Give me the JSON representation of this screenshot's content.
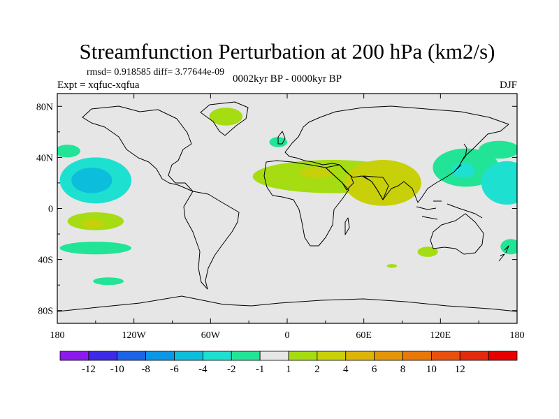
{
  "chart_data": {
    "type": "heatmap",
    "title": "Streamfunction Perturbation at 200 hPa (km2/s)",
    "stats_text": "rmsd= 0.918585 diff= 3.77644e-09",
    "left_label": "Expt = xqfuc-xqfua",
    "center_label": "0002kyr BP - 0000kyr BP",
    "right_label": "DJF",
    "x_axis": {
      "range": [
        -180,
        180
      ],
      "tick_values": [
        -180,
        -120,
        -60,
        0,
        60,
        120,
        180
      ],
      "tick_labels": [
        "180",
        "120W",
        "60W",
        "0",
        "60E",
        "120E",
        "180"
      ]
    },
    "y_axis": {
      "range": [
        -90,
        90
      ],
      "tick_values": [
        80,
        40,
        0,
        -40,
        -80
      ],
      "tick_labels": [
        "80N",
        "40N",
        "0",
        "40S",
        "80S"
      ]
    },
    "colorbar": {
      "colors": [
        "#8c1aec",
        "#3c2ae6",
        "#1c64e6",
        "#0c96e6",
        "#0cbedc",
        "#1ee0d0",
        "#22e496",
        "#e6e6e6",
        "#a6dc12",
        "#c8d00a",
        "#dcb40a",
        "#e4960a",
        "#e8780a",
        "#e8500c",
        "#e42a0e",
        "#e60000"
      ],
      "boundary_labels": [
        "-12",
        "-10",
        "-8",
        "-6",
        "-4",
        "-2",
        "-1",
        "1",
        "2",
        "4",
        "6",
        "8",
        "10",
        "12"
      ]
    },
    "field_blobs": [
      {
        "name": "greenland-positive",
        "lon": -48,
        "lat": 72,
        "rlon": 13,
        "rlat": 7,
        "value": 1.5
      },
      {
        "name": "north-atlantic-negative",
        "lon": -7,
        "lat": 52,
        "rlon": 7,
        "rlat": 4,
        "value": -1.5
      },
      {
        "name": "west-pacific-negative",
        "lon": -172,
        "lat": 45,
        "rlon": 10,
        "rlat": 5,
        "value": -1.5
      },
      {
        "name": "north-pacific-negative",
        "lon": -150,
        "lat": 22,
        "rlon": 28,
        "rlat": 18,
        "value": -4
      },
      {
        "name": "north-pacific-negative-core",
        "lon": -153,
        "lat": 22,
        "rlon": 16,
        "rlat": 10,
        "value": -5
      },
      {
        "name": "south-pacific-positive",
        "lon": -150,
        "lat": -10,
        "rlon": 22,
        "rlat": 7,
        "value": 1.5
      },
      {
        "name": "south-pacific-positive-core",
        "lon": -152,
        "lat": -12,
        "rlon": 9,
        "rlat": 3,
        "value": 3
      },
      {
        "name": "south-pacific-negative",
        "lon": -150,
        "lat": -31,
        "rlon": 28,
        "rlat": 5,
        "value": -1.5
      },
      {
        "name": "southern-ocean-negative",
        "lon": -140,
        "lat": -57,
        "rlon": 12,
        "rlat": 3,
        "value": -1.5
      },
      {
        "name": "africa-asia-positive",
        "lon": 35,
        "lat": 25,
        "rlon": 62,
        "rlat": 13,
        "value": 1.5
      },
      {
        "name": "india-positive",
        "lon": 75,
        "lat": 20,
        "rlon": 30,
        "rlat": 18,
        "value": 2.5
      },
      {
        "name": "india-positive-core",
        "lon": 75,
        "lat": 22,
        "rlon": 18,
        "rlat": 8,
        "value": 3
      },
      {
        "name": "north-africa-positive",
        "lon": 23,
        "lat": 28,
        "rlon": 13,
        "rlat": 4,
        "value": 3
      },
      {
        "name": "east-asia-negative",
        "lon": 140,
        "lat": 32,
        "rlon": 26,
        "rlat": 15,
        "value": -1.5
      },
      {
        "name": "east-asia-negative-core",
        "lon": 138,
        "lat": 30,
        "rlon": 9,
        "rlat": 6,
        "value": -3
      },
      {
        "name": "dateline-negative",
        "lon": 172,
        "lat": 20,
        "rlon": 20,
        "rlat": 17,
        "value": -3
      },
      {
        "name": "dateline-north-negative",
        "lon": 166,
        "lat": 46,
        "rlon": 16,
        "rlat": 7,
        "value": -1.5
      },
      {
        "name": "australia-positive",
        "lon": 110,
        "lat": -34,
        "rlon": 8,
        "rlat": 4,
        "value": 1.5
      },
      {
        "name": "south-pacific-east-negative",
        "lon": 175,
        "lat": -30,
        "rlon": 8,
        "rlat": 6,
        "value": -1.5
      },
      {
        "name": "southern-indian-positive",
        "lon": 82,
        "lat": -45,
        "rlon": 4,
        "rlat": 1.5,
        "value": 1.5
      }
    ]
  }
}
